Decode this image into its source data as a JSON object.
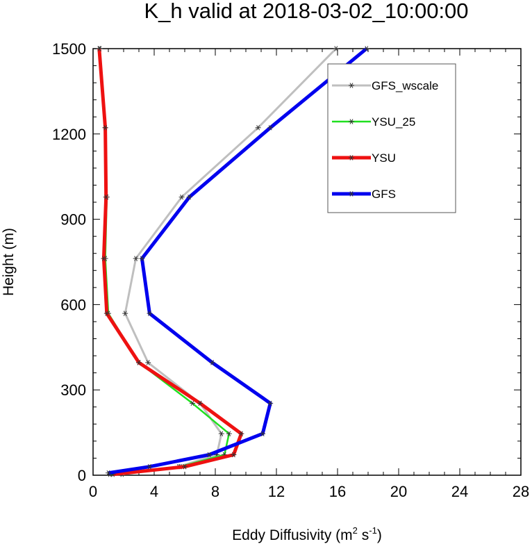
{
  "chart_data": {
    "type": "line",
    "title": "K_h valid at 2018-03-02_10:00:00",
    "xlabel": {
      "prefix": "Eddy Diffusivity (m",
      "sup1": "2",
      "mid": " s",
      "sup2": "-1",
      "suffix": ")"
    },
    "ylabel": "Height (m)",
    "xlim": [
      0,
      28
    ],
    "ylim": [
      0,
      1500
    ],
    "xticks": [
      0,
      4,
      8,
      12,
      16,
      20,
      24,
      28
    ],
    "yticks": [
      0,
      300,
      600,
      900,
      1200,
      1500
    ],
    "legend_position": "top-right",
    "grid": false,
    "series": [
      {
        "name": "GFS_wscale",
        "color": "#bfbfbf",
        "width": 3,
        "marker": "asterisk",
        "points": [
          [
            1.9,
            3
          ],
          [
            5.6,
            30
          ],
          [
            8.1,
            72
          ],
          [
            8.4,
            146
          ],
          [
            7.0,
            253
          ],
          [
            3.6,
            396
          ],
          [
            2.1,
            569
          ],
          [
            2.8,
            762
          ],
          [
            5.8,
            978
          ],
          [
            10.8,
            1222
          ],
          [
            15.9,
            1500
          ]
        ]
      },
      {
        "name": "YSU_25",
        "color": "#1fe01f",
        "width": 2.5,
        "marker": "asterisk",
        "points": [
          [
            1.1,
            3
          ],
          [
            5.7,
            30
          ],
          [
            8.6,
            72
          ],
          [
            8.9,
            146
          ],
          [
            6.5,
            253
          ],
          [
            3.0,
            396
          ],
          [
            1.0,
            569
          ],
          [
            0.8,
            762
          ],
          [
            0.9,
            978
          ],
          [
            0.8,
            1222
          ],
          [
            0.45,
            1500
          ]
        ]
      },
      {
        "name": "YSU",
        "color": "#ee1111",
        "width": 5,
        "marker": "asterisk",
        "points": [
          [
            1.3,
            3
          ],
          [
            6.0,
            30
          ],
          [
            9.2,
            72
          ],
          [
            9.7,
            146
          ],
          [
            7.0,
            253
          ],
          [
            3.0,
            396
          ],
          [
            0.9,
            569
          ],
          [
            0.7,
            762
          ],
          [
            0.85,
            978
          ],
          [
            0.8,
            1222
          ],
          [
            0.4,
            1500
          ]
        ]
      },
      {
        "name": "GFS",
        "color": "#0000ee",
        "width": 5,
        "marker": "asterisk",
        "points": [
          [
            1.0,
            8
          ],
          [
            3.7,
            30
          ],
          [
            7.6,
            72
          ],
          [
            11.1,
            146
          ],
          [
            11.6,
            253
          ],
          [
            7.8,
            396
          ],
          [
            3.7,
            569
          ],
          [
            3.2,
            762
          ],
          [
            6.3,
            978
          ],
          [
            11.6,
            1222
          ],
          [
            17.9,
            1500
          ]
        ]
      }
    ]
  }
}
